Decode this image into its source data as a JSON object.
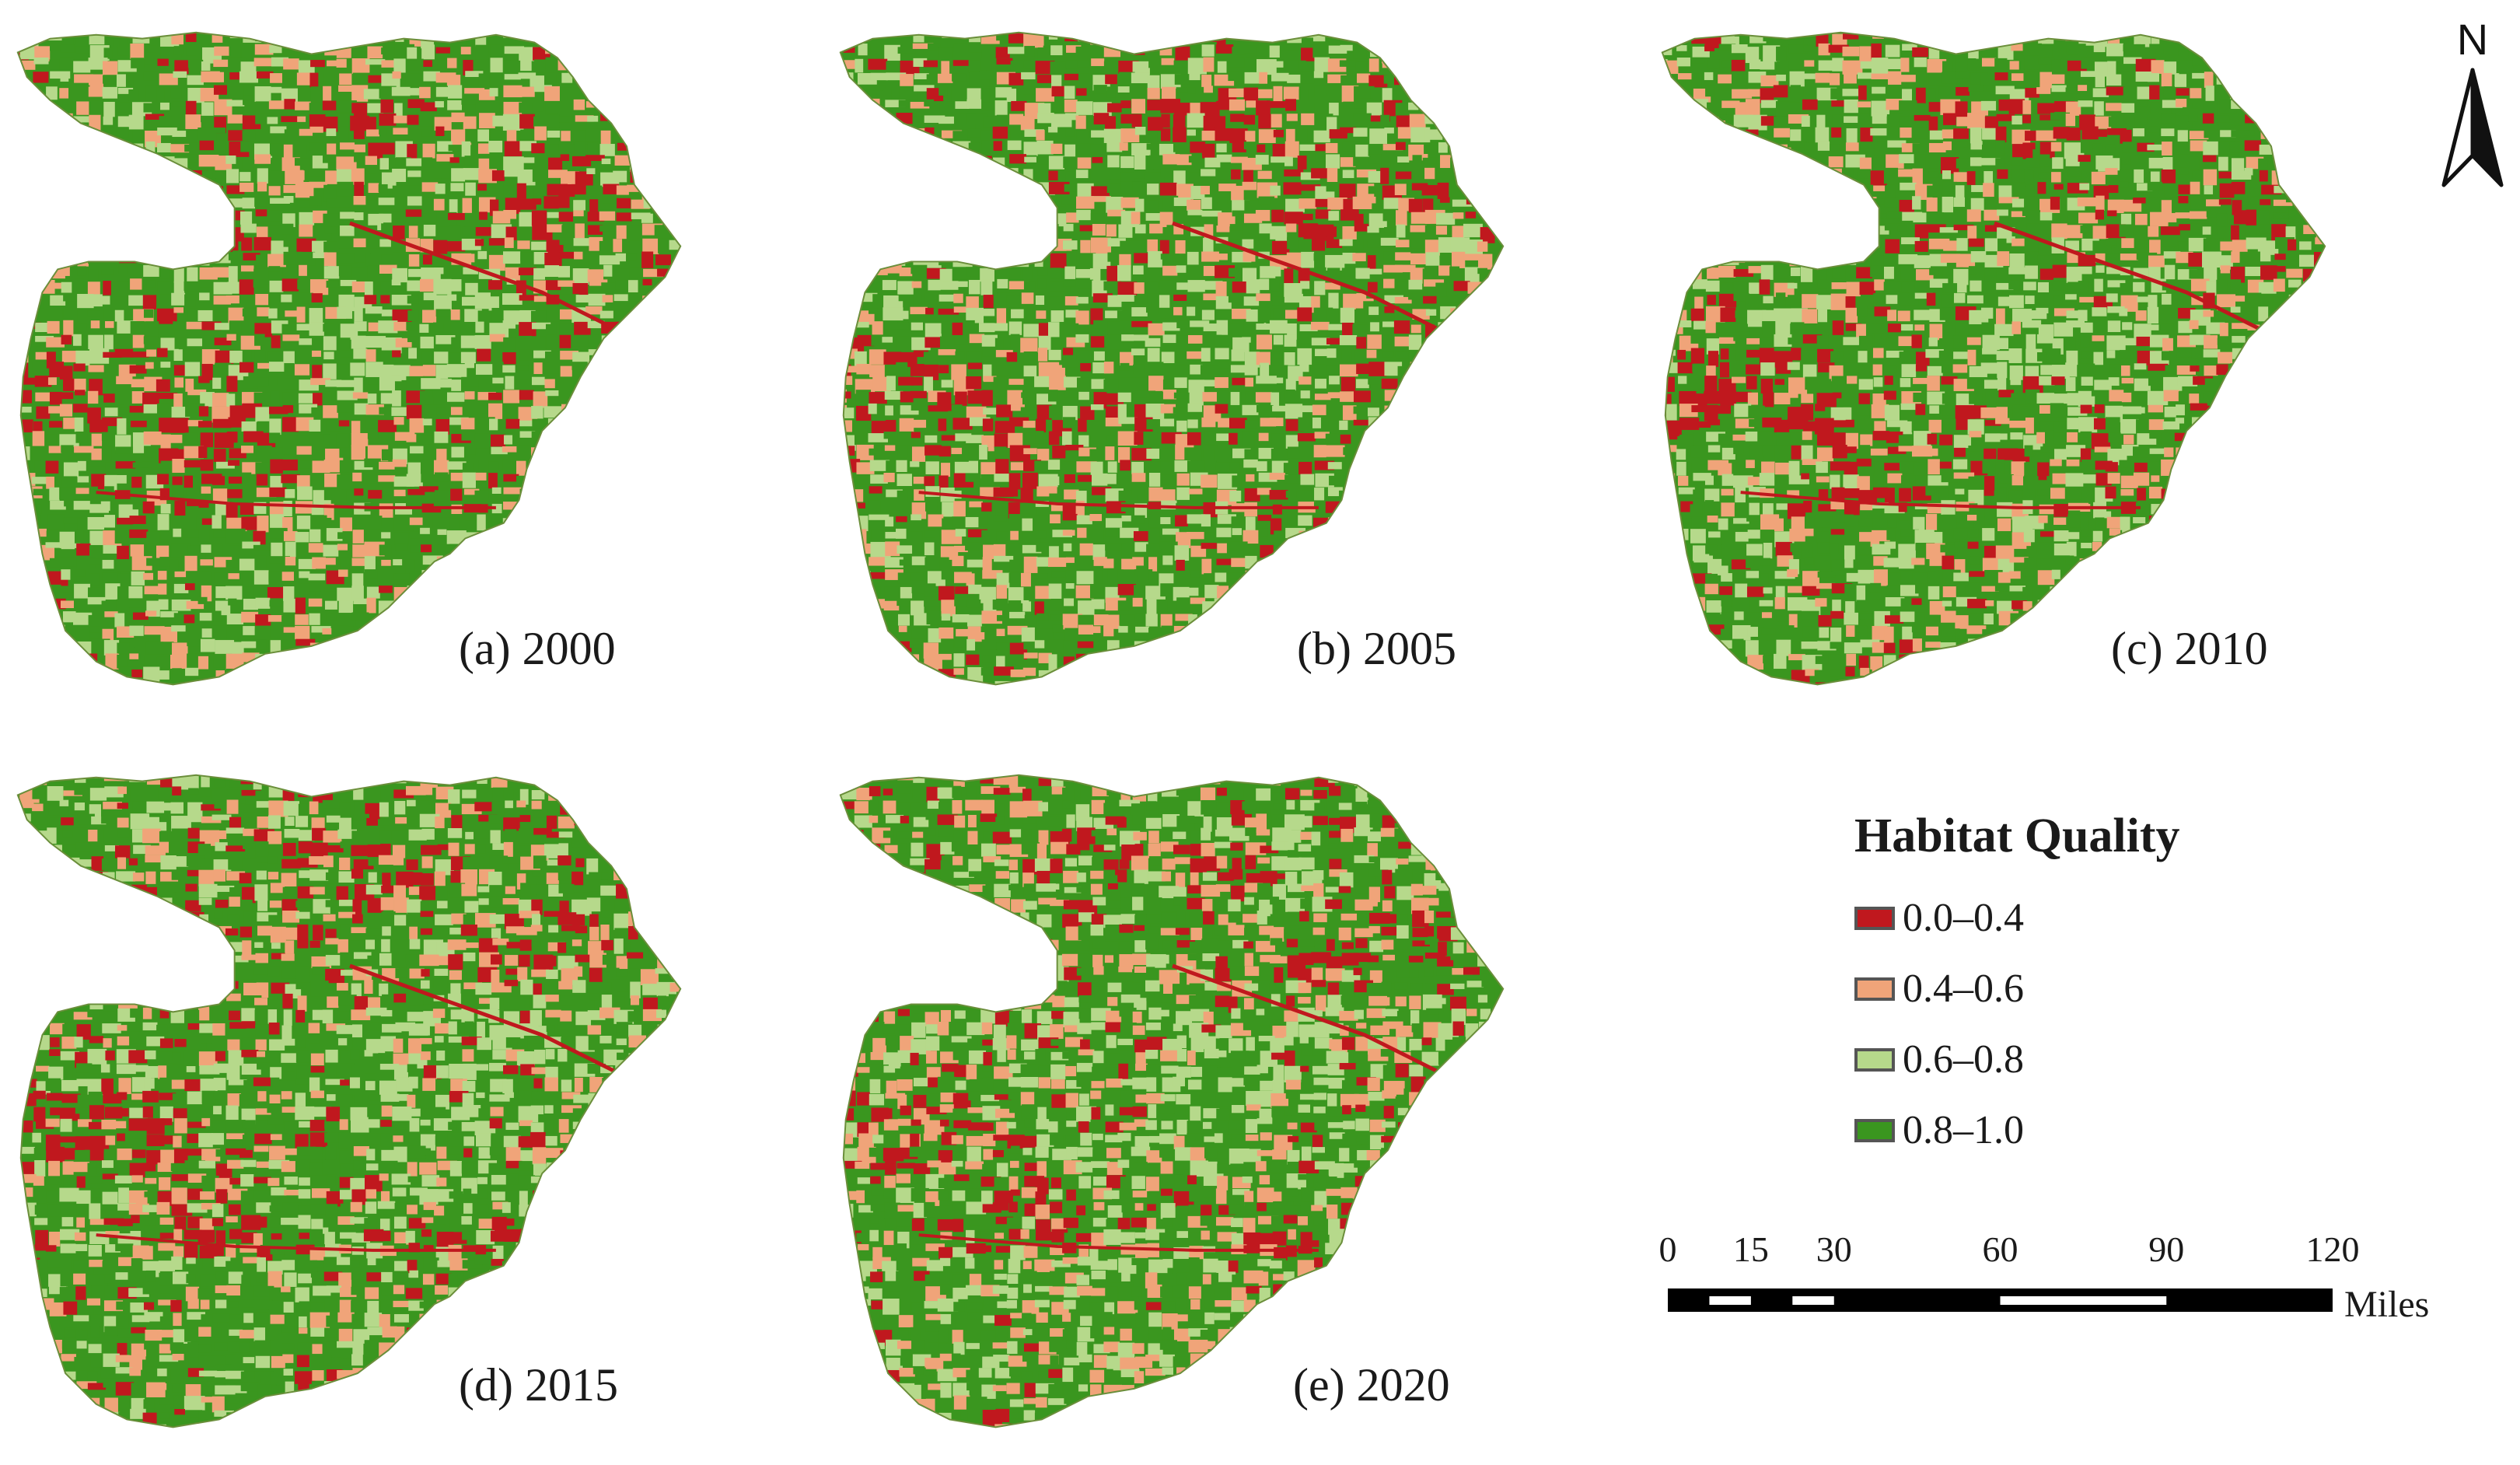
{
  "panels": [
    {
      "caption": "(a) 2000",
      "seed": 11
    },
    {
      "caption": "(b) 2005",
      "seed": 23
    },
    {
      "caption": "(c) 2010",
      "seed": 37
    },
    {
      "caption": "(d) 2015",
      "seed": 41
    },
    {
      "caption": "(e) 2020",
      "seed": 59
    }
  ],
  "north_arrow": {
    "label": "N"
  },
  "legend": {
    "title": "Habitat Quality",
    "classes": [
      {
        "label": "0.0–0.4",
        "color": "#c0181e"
      },
      {
        "label": "0.4–0.6",
        "color": "#f0a479"
      },
      {
        "label": "0.6–0.8",
        "color": "#b6d98b"
      },
      {
        "label": "0.8–1.0",
        "color": "#3a961f"
      }
    ]
  },
  "scale_bar": {
    "ticks": [
      "0",
      "15",
      "30",
      "60",
      "90",
      "120"
    ],
    "tick_values": [
      0,
      15,
      30,
      60,
      90,
      120
    ],
    "unit": "Miles"
  }
}
